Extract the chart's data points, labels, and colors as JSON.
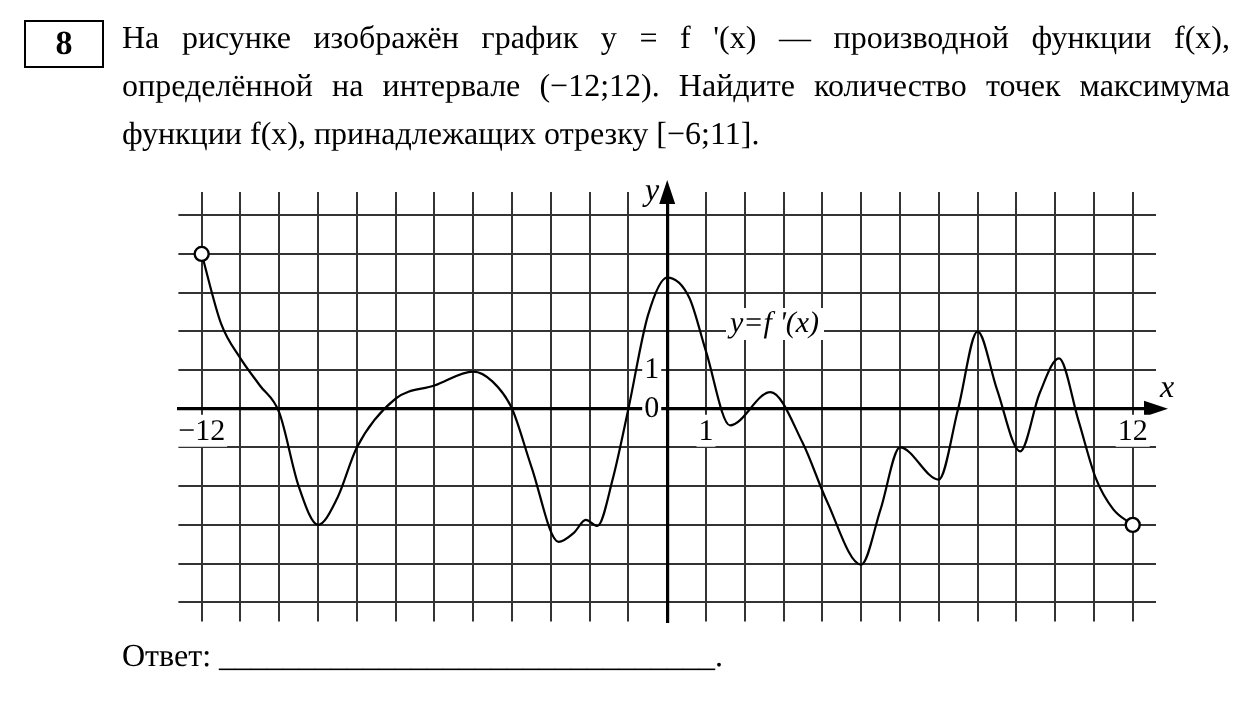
{
  "chart_data": {
    "type": "line",
    "title": "На рисунке изображён график y = f '(x) — производной функции f(x), определённой на интервале (−12;12). Найдите количество точек максимума функции f(x), принадлежащих отрезку [−6;11].",
    "xlabel": "x",
    "ylabel": "y",
    "annotations": [
      "8",
      "y=f '(x)",
      "Ответ: _______________________________."
    ],
    "series": [
      {
        "color": "#000000",
        "x": [
          -12,
          -11.5,
          -11,
          -10.5,
          -10,
          -9.5,
          -9,
          -8.5,
          -8,
          -7,
          -6,
          -5,
          -4.5,
          -4,
          -3.5,
          -2.8,
          -2.4,
          -2.1,
          -1.8,
          -1.4,
          -1,
          -0.5,
          0,
          0.57,
          1,
          1.62,
          2.66,
          3.5,
          4.1,
          5,
          5.5,
          6,
          7,
          7.5,
          8,
          8.5,
          9.1,
          9.6,
          10.1,
          10.6,
          11.05,
          11.5,
          12
        ],
        "values": [
          4,
          2.2,
          1.3,
          0.6,
          -0.1,
          -2,
          -3,
          -2.3,
          -1,
          0.26,
          0.6,
          0.96,
          0.7,
          0,
          -1.5,
          -3.44,
          -3.2,
          -2.87,
          -3.03,
          -1.8,
          0,
          2.4,
          3.39,
          2.87,
          1.48,
          -0.43,
          0.43,
          -0.9,
          -2.35,
          -4.03,
          -2.6,
          -1,
          -1.83,
          0,
          2,
          0.5,
          -1.1,
          0.4,
          1.3,
          -0.3,
          -1.8,
          -2.6,
          -3
        ]
      }
    ],
    "xlim": [
      -12.6,
      12.6
    ],
    "ylim": [
      -5.5,
      5.6
    ],
    "xticks": [
      {
        "value": -12,
        "label": "−12"
      },
      {
        "value": -11,
        "label": null
      },
      {
        "value": -10,
        "label": null
      },
      {
        "value": -9,
        "label": null
      },
      {
        "value": -8,
        "label": null
      },
      {
        "value": -7,
        "label": null
      },
      {
        "value": -6,
        "label": null
      },
      {
        "value": -5,
        "label": null
      },
      {
        "value": -4,
        "label": null
      },
      {
        "value": -3,
        "label": null
      },
      {
        "value": -2,
        "label": null
      },
      {
        "value": -1,
        "label": null
      },
      {
        "value": 0,
        "label": null
      },
      1,
      {
        "value": 2,
        "label": null
      },
      {
        "value": 3,
        "label": null
      },
      {
        "value": 4,
        "label": null
      },
      {
        "value": 5,
        "label": null
      },
      {
        "value": 6,
        "label": null
      },
      {
        "value": 7,
        "label": null
      },
      {
        "value": 8,
        "label": null
      },
      {
        "value": 9,
        "label": null
      },
      {
        "value": 10,
        "label": null
      },
      {
        "value": 11,
        "label": null
      },
      12
    ],
    "yticks": [
      {
        "value": -5,
        "label": null
      },
      {
        "value": -4,
        "label": null
      },
      {
        "value": -3,
        "label": null
      },
      {
        "value": -2,
        "label": null
      },
      {
        "value": -1,
        "label": null
      },
      0,
      1,
      {
        "value": 2,
        "label": null
      },
      {
        "value": 3,
        "label": null
      },
      {
        "value": 4,
        "label": null
      },
      {
        "value": 5,
        "label": null
      }
    ],
    "grid": true,
    "legend": false,
    "line_style": "solid",
    "marker": "none"
  }
}
